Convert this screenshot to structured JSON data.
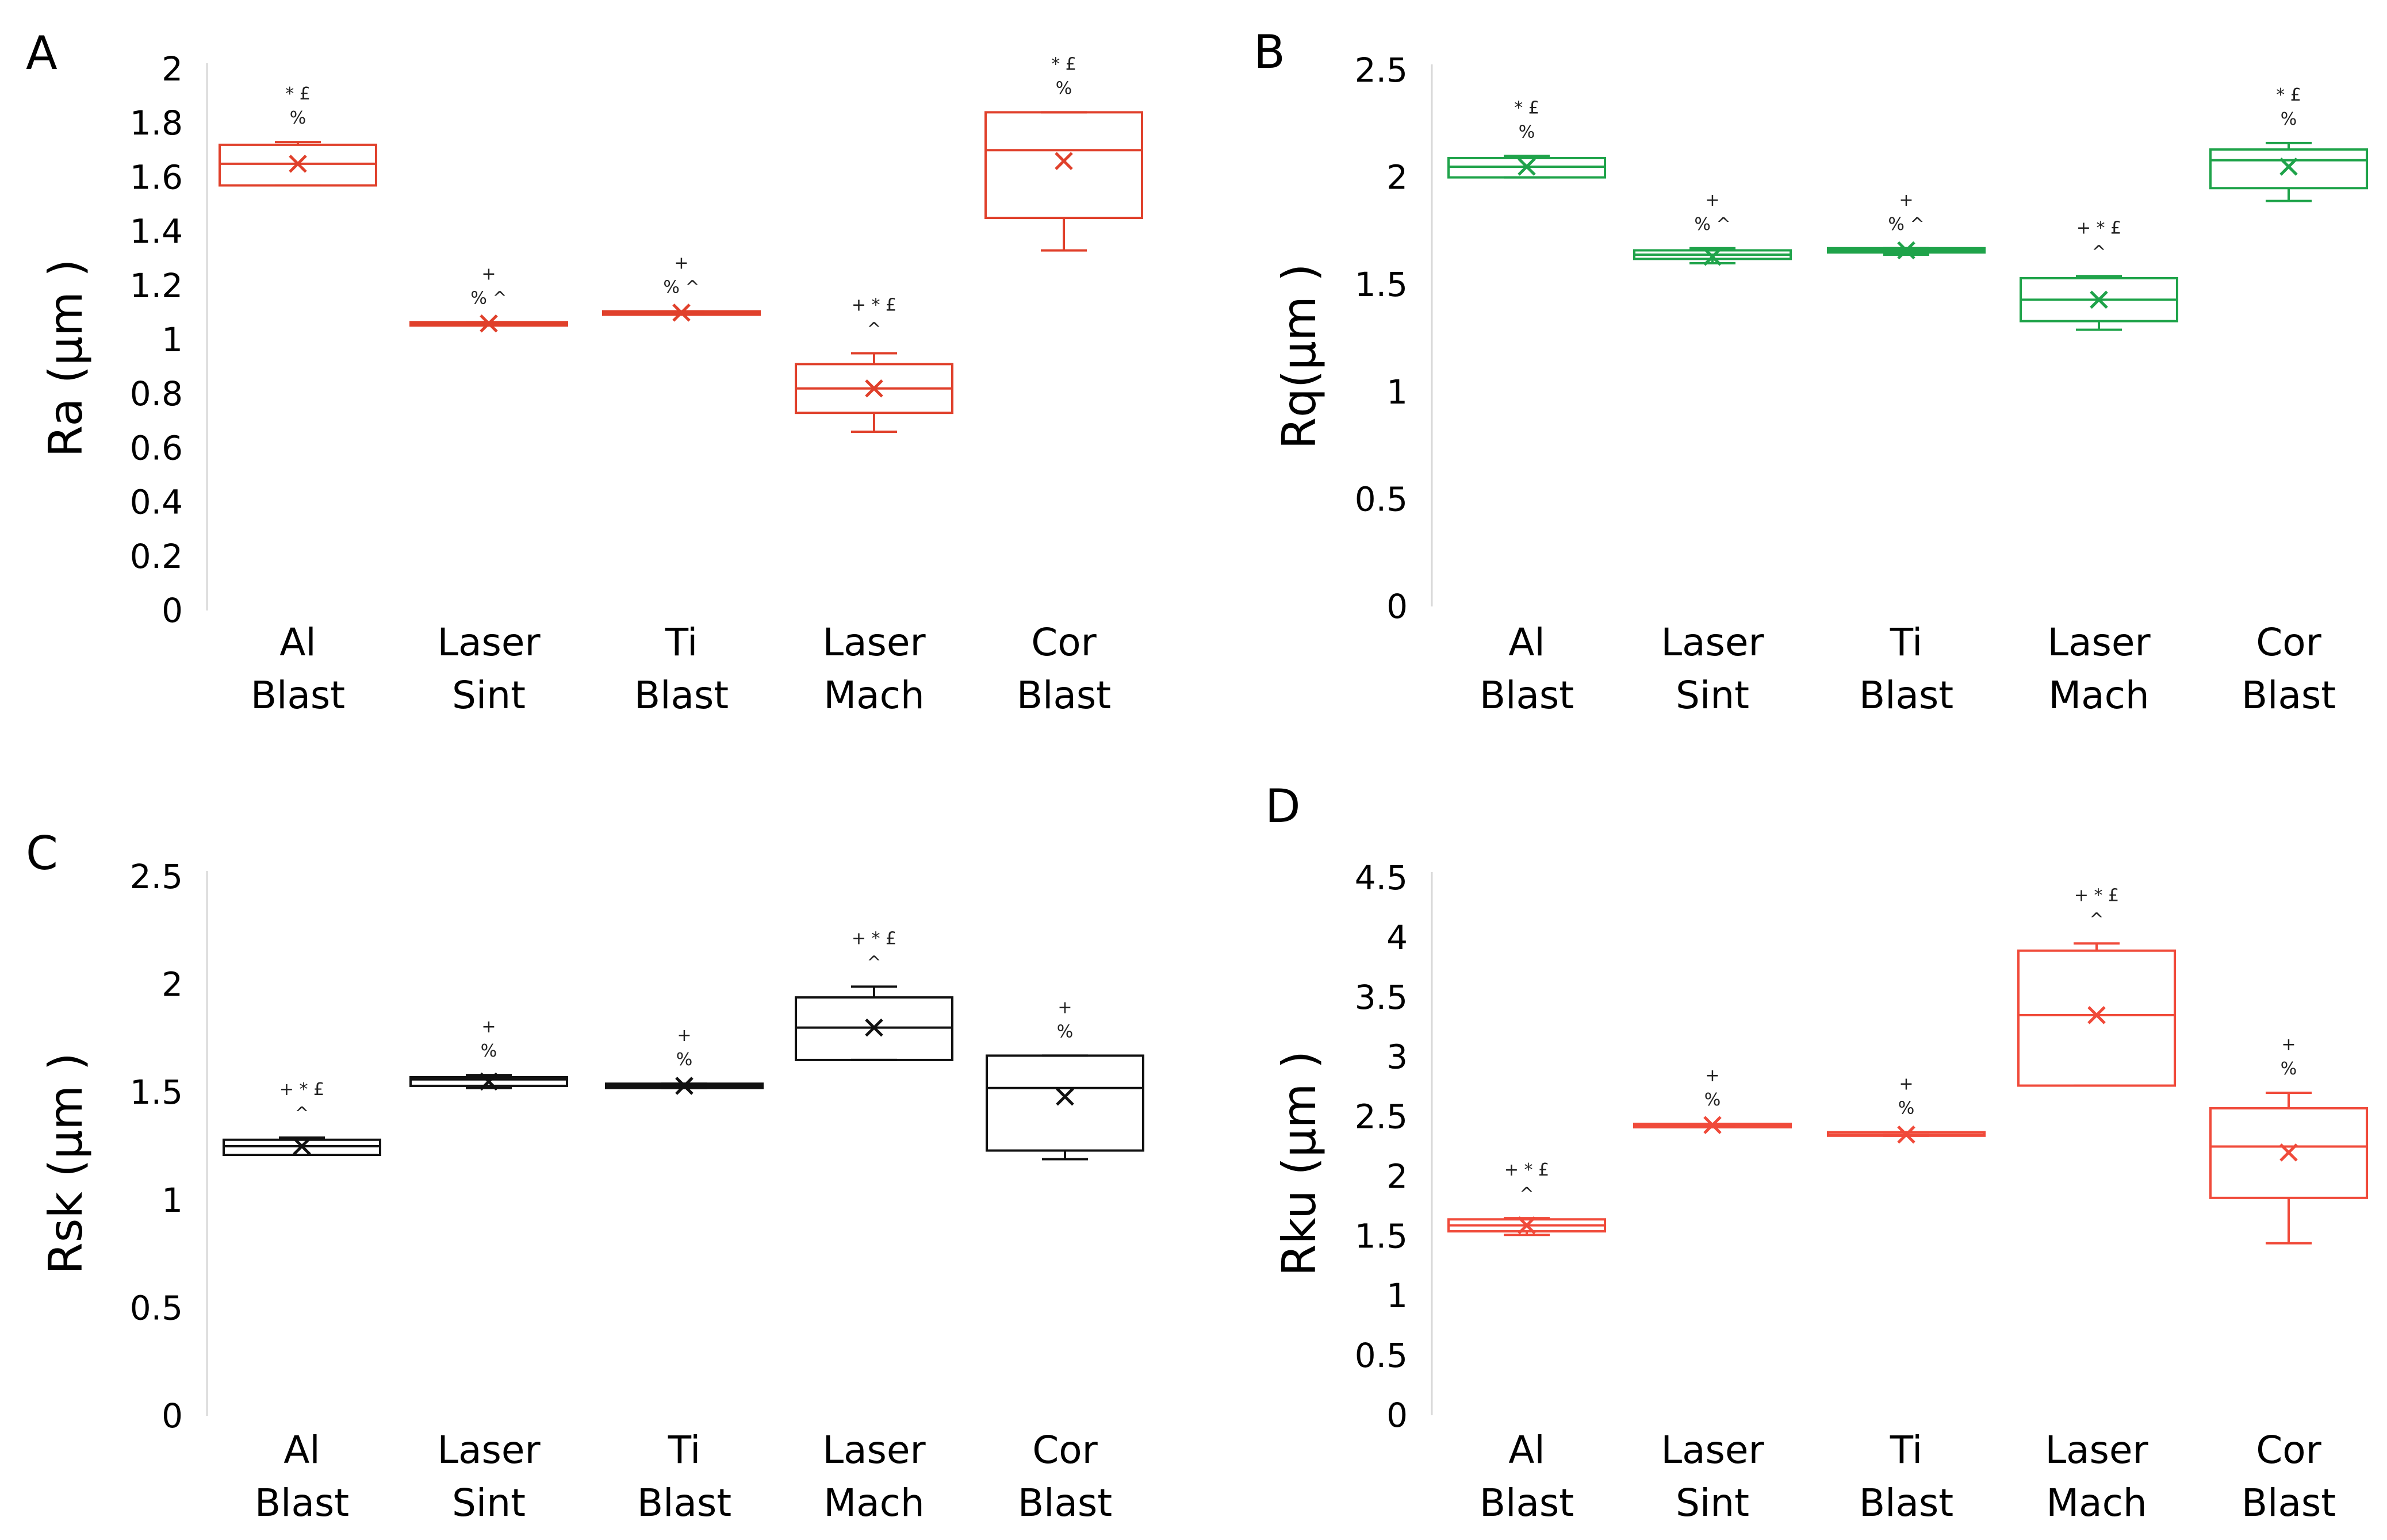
{
  "chart_data": [
    {
      "type": "boxplot",
      "panel": "A",
      "ylabel": "Ra (µm )",
      "ylim": [
        0,
        2
      ],
      "yticks": [
        "0",
        "0.2",
        "0.4",
        "0.6",
        "0.8",
        "1",
        "1.2",
        "1.4",
        "1.6",
        "1.8",
        "2"
      ],
      "color": "#e0402b",
      "categories": [
        {
          "line1": "Al",
          "line2": "Blast",
          "min": 1.57,
          "q1": 1.57,
          "median": 1.65,
          "q3": 1.72,
          "max": 1.73,
          "mean": 1.65,
          "anno": [
            "* £",
            "%"
          ]
        },
        {
          "line1": "Laser",
          "line2": "Sint",
          "min": 1.055,
          "q1": 1.055,
          "median": 1.06,
          "q3": 1.065,
          "max": 1.065,
          "mean": 1.06,
          "anno": [
            "+",
            "% ^"
          ]
        },
        {
          "line1": "Ti",
          "line2": "Blast",
          "min": 1.1,
          "q1": 1.1,
          "median": 1.1,
          "q3": 1.105,
          "max": 1.105,
          "mean": 1.1,
          "anno": [
            "+",
            "% ^"
          ]
        },
        {
          "line1": "Laser",
          "line2": "Mach",
          "min": 0.66,
          "q1": 0.73,
          "median": 0.82,
          "q3": 0.91,
          "max": 0.95,
          "mean": 0.82,
          "anno": [
            "+ * £",
            "^"
          ]
        },
        {
          "line1": "Cor",
          "line2": "Blast",
          "min": 1.33,
          "q1": 1.45,
          "median": 1.7,
          "q3": 1.84,
          "max": 1.84,
          "mean": 1.66,
          "anno": [
            "* £",
            "%"
          ]
        }
      ]
    },
    {
      "type": "boxplot",
      "panel": "B",
      "ylabel": "Rq(µm )",
      "ylim": [
        0,
        2.5
      ],
      "yticks": [
        "0",
        "0.5",
        "1",
        "1.5",
        "2",
        "2.5"
      ],
      "color": "#1fa34a",
      "categories": [
        {
          "line1": "Al",
          "line2": "Blast",
          "min": 2.0,
          "q1": 2.0,
          "median": 2.05,
          "q3": 2.09,
          "max": 2.1,
          "mean": 2.05,
          "anno": [
            "* £",
            "%"
          ]
        },
        {
          "line1": "Laser",
          "line2": "Sint",
          "min": 1.6,
          "q1": 1.62,
          "median": 1.64,
          "q3": 1.66,
          "max": 1.67,
          "mean": 1.63,
          "anno": [
            "+",
            "% ^"
          ]
        },
        {
          "line1": "Ti",
          "line2": "Blast",
          "min": 1.64,
          "q1": 1.65,
          "median": 1.66,
          "q3": 1.67,
          "max": 1.67,
          "mean": 1.66,
          "anno": [
            "+",
            "% ^"
          ]
        },
        {
          "line1": "Laser",
          "line2": "Mach",
          "min": 1.29,
          "q1": 1.33,
          "median": 1.43,
          "q3": 1.53,
          "max": 1.54,
          "mean": 1.43,
          "anno": [
            "+ * £",
            "^"
          ]
        },
        {
          "line1": "Cor",
          "line2": "Blast",
          "min": 1.89,
          "q1": 1.95,
          "median": 2.08,
          "q3": 2.13,
          "max": 2.16,
          "mean": 2.05,
          "anno": [
            "* £",
            "%"
          ]
        }
      ]
    },
    {
      "type": "boxplot",
      "panel": "C",
      "ylabel": "Rsk (µm )",
      "ylim": [
        0,
        2.5
      ],
      "yticks": [
        "0",
        "0.5",
        "1",
        "1.5",
        "2",
        "2.5"
      ],
      "color": "#111111",
      "categories": [
        {
          "line1": "Al",
          "line2": "Blast",
          "min": 1.21,
          "q1": 1.21,
          "median": 1.25,
          "q3": 1.28,
          "max": 1.29,
          "mean": 1.25,
          "anno": [
            "+ * £",
            "^"
          ]
        },
        {
          "line1": "Laser",
          "line2": "Sint",
          "min": 1.52,
          "q1": 1.53,
          "median": 1.56,
          "q3": 1.57,
          "max": 1.58,
          "mean": 1.55,
          "anno": [
            "+",
            "%"
          ]
        },
        {
          "line1": "Ti",
          "line2": "Blast",
          "min": 1.52,
          "q1": 1.52,
          "median": 1.53,
          "q3": 1.54,
          "max": 1.54,
          "mean": 1.53,
          "anno": [
            "+",
            "%"
          ]
        },
        {
          "line1": "Laser",
          "line2": "Mach",
          "min": 1.65,
          "q1": 1.65,
          "median": 1.8,
          "q3": 1.94,
          "max": 1.99,
          "mean": 1.8,
          "anno": [
            "+ * £",
            "^"
          ]
        },
        {
          "line1": "Cor",
          "line2": "Blast",
          "min": 1.19,
          "q1": 1.23,
          "median": 1.52,
          "q3": 1.67,
          "max": 1.67,
          "mean": 1.48,
          "anno": [
            "+",
            "%"
          ]
        }
      ]
    },
    {
      "type": "boxplot",
      "panel": "D",
      "ylabel": "Rku (µm )",
      "ylim": [
        0,
        4.5
      ],
      "yticks": [
        "0",
        "0.5",
        "1",
        "1.5",
        "2",
        "2.5",
        "3",
        "3.5",
        "4",
        "4.5"
      ],
      "color": "#f04a3a",
      "categories": [
        {
          "line1": "Al",
          "line2": "Blast",
          "min": 1.51,
          "q1": 1.54,
          "median": 1.59,
          "q3": 1.64,
          "max": 1.65,
          "mean": 1.59,
          "anno": [
            "+ * £",
            "^"
          ]
        },
        {
          "line1": "Laser",
          "line2": "Sint",
          "min": 2.42,
          "q1": 2.42,
          "median": 2.43,
          "q3": 2.44,
          "max": 2.44,
          "mean": 2.43,
          "anno": [
            "+",
            "%"
          ]
        },
        {
          "line1": "Ti",
          "line2": "Blast",
          "min": 2.34,
          "q1": 2.34,
          "median": 2.35,
          "q3": 2.37,
          "max": 2.37,
          "mean": 2.35,
          "anno": [
            "+",
            "%"
          ]
        },
        {
          "line1": "Laser",
          "line2": "Mach",
          "min": 2.76,
          "q1": 2.76,
          "median": 3.35,
          "q3": 3.89,
          "max": 3.95,
          "mean": 3.35,
          "anno": [
            "+ * £",
            "^"
          ]
        },
        {
          "line1": "Cor",
          "line2": "Blast",
          "min": 1.44,
          "q1": 1.82,
          "median": 2.25,
          "q3": 2.57,
          "max": 2.7,
          "mean": 2.2,
          "anno": [
            "+",
            "%"
          ]
        }
      ]
    }
  ]
}
